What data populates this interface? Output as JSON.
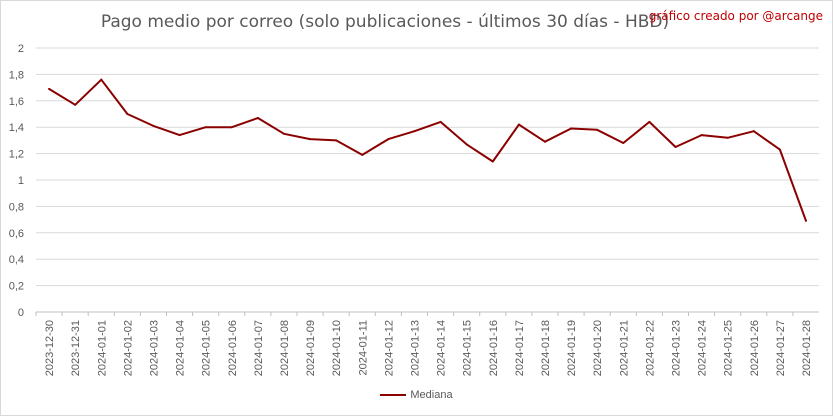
{
  "chart_data": {
    "type": "line",
    "title": "Pago medio por correo (solo publicaciones - últimos 30 días - HBD)",
    "credit": "gráfico creado por @arcange",
    "ylim": [
      0,
      2
    ],
    "y_ticks": [
      "0",
      "0,2",
      "0,4",
      "0,6",
      "0,8",
      "1",
      "1,2",
      "1,4",
      "1,6",
      "1,8",
      "2"
    ],
    "grid": true,
    "legend_position": "bottom",
    "line_color": "#8b0000",
    "categories": [
      "2023-12-30",
      "2023-12-31",
      "2024-01-01",
      "2024-01-02",
      "2024-01-03",
      "2024-01-04",
      "2024-01-05",
      "2024-01-06",
      "2024-01-07",
      "2024-01-08",
      "2024-01-09",
      "2024-01-10",
      "2024-01-11",
      "2024-01-12",
      "2024-01-13",
      "2024-01-14",
      "2024-01-15",
      "2024-01-16",
      "2024-01-17",
      "2024-01-18",
      "2024-01-19",
      "2024-01-20",
      "2024-01-21",
      "2024-01-22",
      "2024-01-23",
      "2024-01-24",
      "2024-01-25",
      "2024-01-26",
      "2024-01-27",
      "2024-01-28"
    ],
    "series": [
      {
        "name": "Mediana",
        "values": [
          1.69,
          1.57,
          1.76,
          1.5,
          1.41,
          1.34,
          1.4,
          1.4,
          1.47,
          1.35,
          1.31,
          1.3,
          1.19,
          1.31,
          1.37,
          1.44,
          1.27,
          1.14,
          1.42,
          1.29,
          1.39,
          1.38,
          1.28,
          1.44,
          1.25,
          1.34,
          1.32,
          1.37,
          1.23,
          0.69
        ]
      }
    ]
  }
}
